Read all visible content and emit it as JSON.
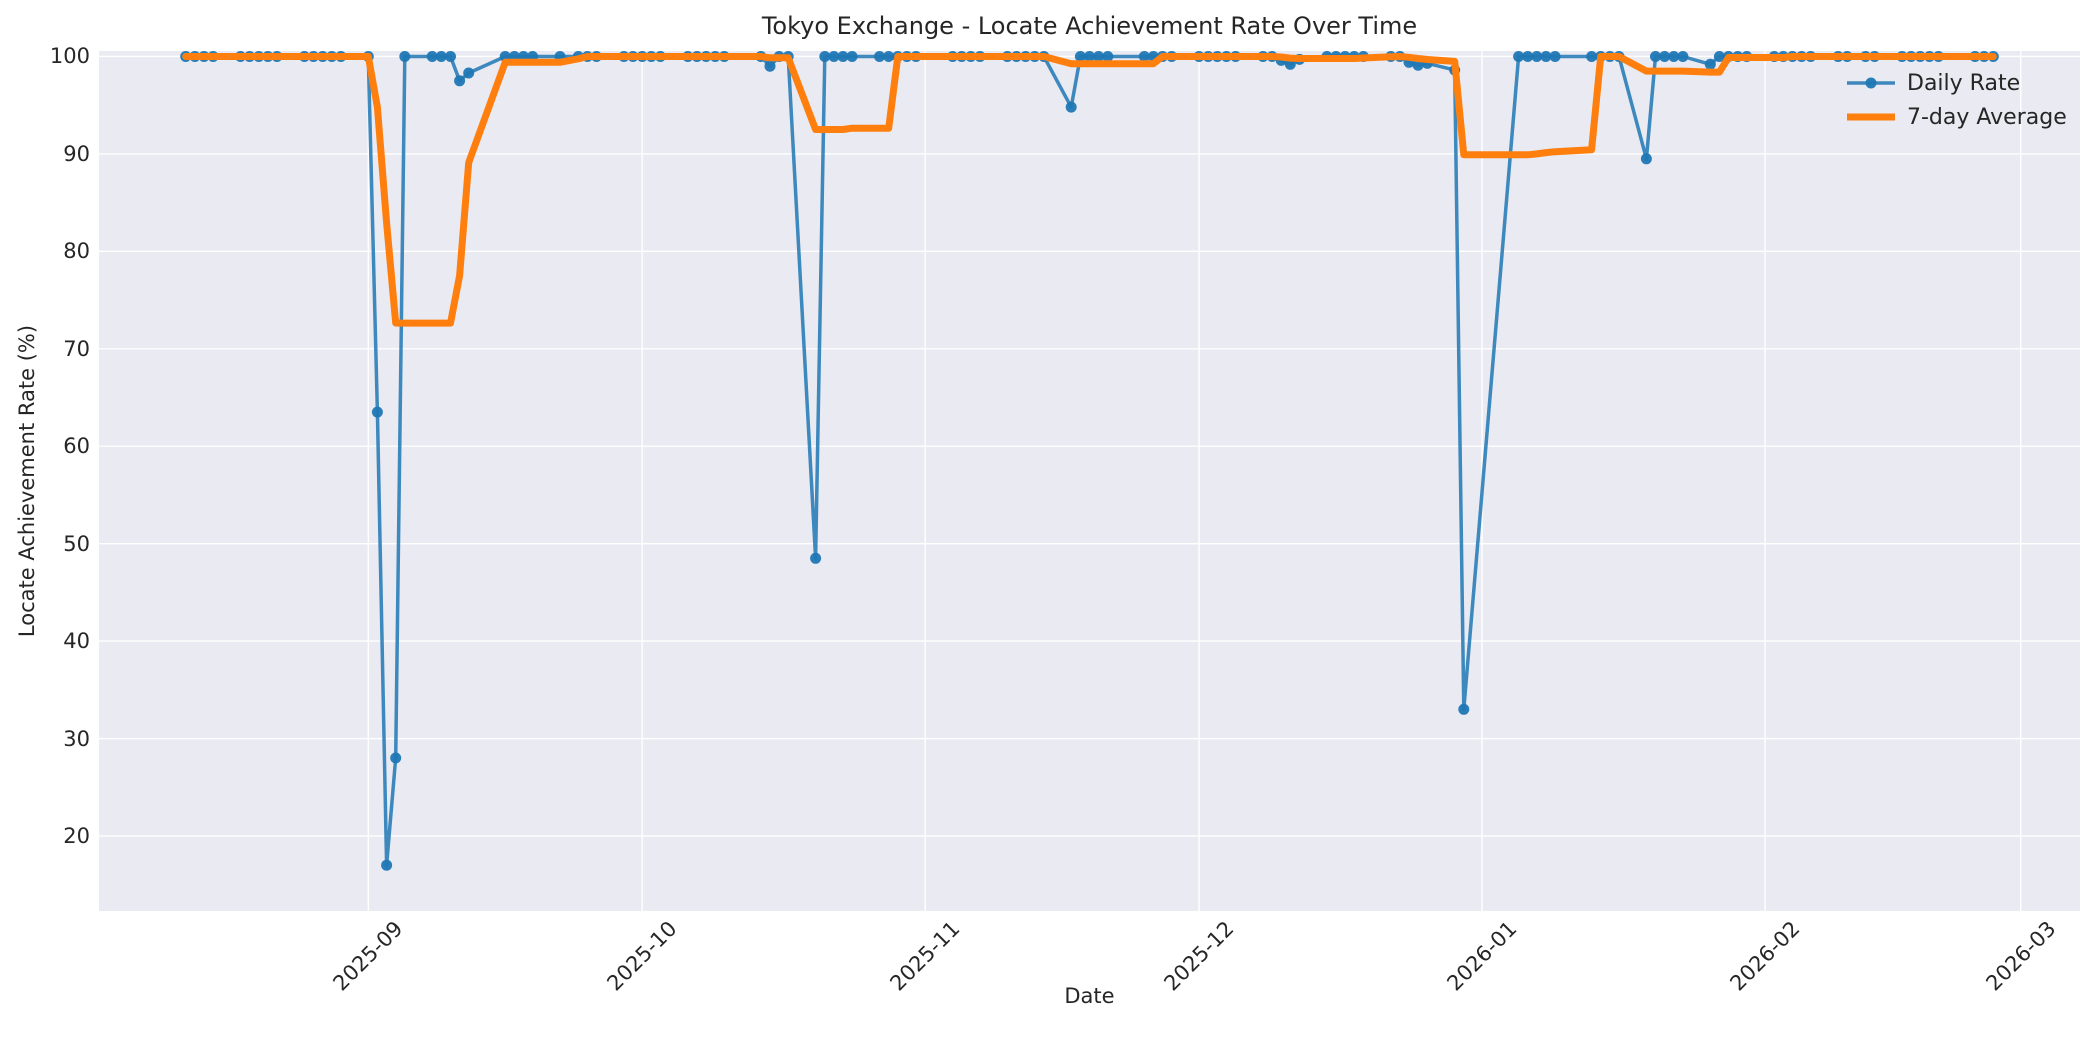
{
  "title": "Tokyo Exchange - Locate Achievement Rate Over Time",
  "x_axis": {
    "label": "Date",
    "ticks": [
      {
        "label": "2025-09",
        "date": "2025-09-01"
      },
      {
        "label": "2025-10",
        "date": "2025-10-01"
      },
      {
        "label": "2025-11",
        "date": "2025-11-01"
      },
      {
        "label": "2025-12",
        "date": "2025-12-01"
      },
      {
        "label": "2026-01",
        "date": "2026-01-01"
      },
      {
        "label": "2026-02",
        "date": "2026-02-01"
      },
      {
        "label": "2026-03",
        "date": "2026-03-01"
      }
    ]
  },
  "y_axis": {
    "label": "Locate Achievement Rate (%)",
    "ticks": [
      100,
      90,
      80,
      70,
      60,
      50,
      40,
      30,
      20
    ]
  },
  "legend": {
    "items": [
      {
        "label": "Daily Rate"
      },
      {
        "label": "7-day Average"
      }
    ]
  },
  "colors": {
    "daily": "rgba(31,119,180,0.85)",
    "daily_marker": "rgba(31,119,180,0.95)",
    "average": "#ff7f0e",
    "plot_bg": "#eaeaf2",
    "grid": "#ffffff",
    "text": "#262626"
  },
  "chart_data": {
    "type": "line",
    "title": "Tokyo Exchange - Locate Achievement Rate Over Time",
    "xlabel": "Date",
    "ylabel": "Locate Achievement Rate (%)",
    "grid": true,
    "legend_position": "upper right",
    "xlim": [
      "2025-08-02T12:00:00Z",
      "2026-03-07T12:00:00Z"
    ],
    "ylim": [
      12.3,
      100.56
    ],
    "x": [
      "2025-08-12",
      "2025-08-13",
      "2025-08-14",
      "2025-08-15",
      "2025-08-18",
      "2025-08-19",
      "2025-08-20",
      "2025-08-21",
      "2025-08-22",
      "2025-08-25",
      "2025-08-26",
      "2025-08-27",
      "2025-08-28",
      "2025-08-29",
      "2025-09-01",
      "2025-09-02",
      "2025-09-03",
      "2025-09-04",
      "2025-09-05",
      "2025-09-08",
      "2025-09-09",
      "2025-09-10",
      "2025-09-11",
      "2025-09-12",
      "2025-09-16",
      "2025-09-17",
      "2025-09-18",
      "2025-09-19",
      "2025-09-22",
      "2025-09-24",
      "2025-09-25",
      "2025-09-26",
      "2025-09-29",
      "2025-09-30",
      "2025-10-01",
      "2025-10-02",
      "2025-10-03",
      "2025-10-06",
      "2025-10-07",
      "2025-10-08",
      "2025-10-09",
      "2025-10-10",
      "2025-10-14",
      "2025-10-15",
      "2025-10-16",
      "2025-10-17",
      "2025-10-20",
      "2025-10-21",
      "2025-10-22",
      "2025-10-23",
      "2025-10-24",
      "2025-10-27",
      "2025-10-28",
      "2025-10-29",
      "2025-10-30",
      "2025-10-31",
      "2025-11-04",
      "2025-11-05",
      "2025-11-06",
      "2025-11-07",
      "2025-11-10",
      "2025-11-11",
      "2025-11-12",
      "2025-11-13",
      "2025-11-14",
      "2025-11-17",
      "2025-11-18",
      "2025-11-19",
      "2025-11-20",
      "2025-11-21",
      "2025-11-25",
      "2025-11-26",
      "2025-11-27",
      "2025-11-28",
      "2025-12-01",
      "2025-12-02",
      "2025-12-03",
      "2025-12-04",
      "2025-12-05",
      "2025-12-08",
      "2025-12-09",
      "2025-12-10",
      "2025-12-11",
      "2025-12-12",
      "2025-12-15",
      "2025-12-16",
      "2025-12-17",
      "2025-12-18",
      "2025-12-19",
      "2025-12-22",
      "2025-12-23",
      "2025-12-24",
      "2025-12-25",
      "2025-12-26",
      "2025-12-29",
      "2025-12-30",
      "2026-01-05",
      "2026-01-06",
      "2026-01-07",
      "2026-01-08",
      "2026-01-09",
      "2026-01-13",
      "2026-01-14",
      "2026-01-15",
      "2026-01-16",
      "2026-01-19",
      "2026-01-20",
      "2026-01-21",
      "2026-01-22",
      "2026-01-23",
      "2026-01-26",
      "2026-01-27",
      "2026-01-28",
      "2026-01-29",
      "2026-01-30",
      "2026-02-02",
      "2026-02-03",
      "2026-02-04",
      "2026-02-05",
      "2026-02-06",
      "2026-02-09",
      "2026-02-10",
      "2026-02-12",
      "2026-02-13",
      "2026-02-16",
      "2026-02-17",
      "2026-02-18",
      "2026-02-19",
      "2026-02-20",
      "2026-02-24",
      "2026-02-25",
      "2026-02-26"
    ],
    "series": [
      {
        "name": "Daily Rate",
        "values": [
          100,
          100,
          100,
          100,
          100,
          100,
          100,
          100,
          100,
          100,
          100,
          100,
          100,
          100,
          100,
          63.5,
          17,
          28,
          100,
          100,
          100,
          100,
          97.5,
          98.3,
          100,
          100,
          100,
          100,
          100,
          100,
          100,
          100,
          100,
          100,
          100,
          100,
          100,
          100,
          100,
          100,
          100,
          100,
          100,
          99,
          100,
          100,
          48.5,
          100,
          100,
          100,
          100,
          100,
          100,
          100,
          100,
          100,
          100,
          100,
          100,
          100,
          100,
          100,
          100,
          100,
          100,
          94.8,
          100,
          100,
          100,
          100,
          100,
          100,
          100,
          100,
          100,
          100,
          100,
          100,
          100,
          100,
          100,
          99.6,
          99.2,
          99.7,
          100,
          100,
          100,
          100,
          100,
          100,
          100,
          99.4,
          99.1,
          99.3,
          98.6,
          33,
          100,
          100,
          100,
          100,
          100,
          100,
          100,
          100,
          100,
          89.5,
          100,
          100,
          100,
          100,
          99.2,
          100,
          100,
          100,
          100,
          100,
          100,
          100,
          100,
          100,
          100,
          100,
          100,
          100,
          100,
          100,
          100,
          100,
          100,
          100,
          100,
          100
        ]
      },
      {
        "name": "7-day Average",
        "values": [
          100,
          100,
          100,
          100,
          100,
          100,
          100,
          100,
          100,
          100,
          100,
          100,
          100,
          100,
          100,
          94.79,
          82.93,
          72.64,
          72.64,
          72.64,
          72.64,
          72.64,
          77.5,
          89.11,
          99.4,
          99.4,
          99.4,
          99.4,
          99.4,
          99.76,
          100,
          100,
          100,
          100,
          100,
          100,
          100,
          100,
          100,
          100,
          100,
          100,
          100,
          99.86,
          99.86,
          99.86,
          92.5,
          92.5,
          92.5,
          92.5,
          92.64,
          92.64,
          92.64,
          100,
          100,
          100,
          100,
          100,
          100,
          100,
          100,
          100,
          100,
          100,
          100,
          99.26,
          99.26,
          99.26,
          99.26,
          99.26,
          99.26,
          99.26,
          100,
          100,
          100,
          100,
          100,
          100,
          100,
          100,
          100,
          99.94,
          99.83,
          99.79,
          99.79,
          99.79,
          99.79,
          99.79,
          99.84,
          99.96,
          100,
          99.91,
          99.79,
          99.69,
          99.49,
          89.91,
          89.91,
          89.91,
          90.0,
          90.13,
          90.23,
          90.43,
          100,
          100,
          100,
          98.5,
          98.5,
          98.5,
          98.5,
          98.5,
          98.39,
          98.39,
          99.89,
          99.89,
          99.89,
          99.89,
          99.89,
          100,
          100,
          100,
          100,
          100,
          100,
          100,
          100,
          100,
          100,
          100,
          100,
          100,
          100,
          100
        ]
      }
    ]
  }
}
